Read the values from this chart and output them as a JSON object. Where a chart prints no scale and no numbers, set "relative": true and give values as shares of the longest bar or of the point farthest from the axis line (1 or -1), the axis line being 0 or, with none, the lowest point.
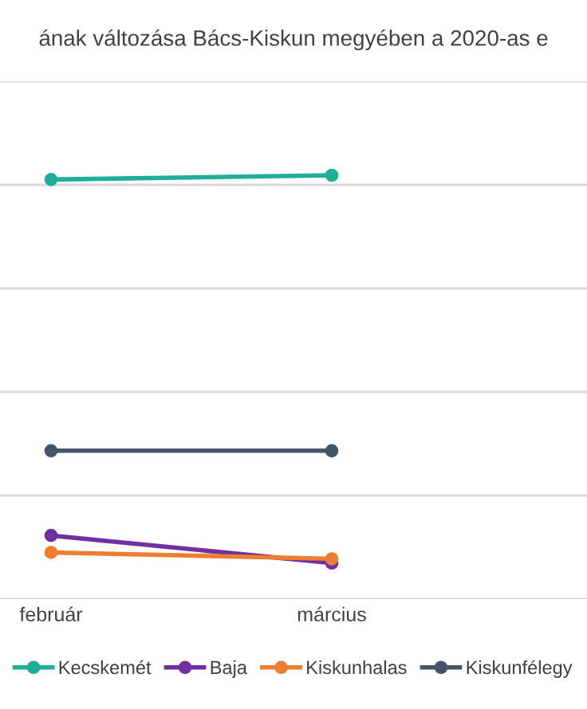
{
  "chart_data": {
    "type": "line",
    "title": "ának változása Bács-Kiskun megyében a 2020-as e",
    "categories": [
      "február",
      "március"
    ],
    "relative": true,
    "series": [
      {
        "name": "Kecskemét",
        "color": "#1fae98",
        "values": [
          0.99,
          1
        ]
      },
      {
        "name": "Baja",
        "color": "#7030a0",
        "values": [
          0.15,
          0.085
        ]
      },
      {
        "name": "Kiskunhalas",
        "color": "#ed7d31",
        "values": [
          0.11,
          0.095
        ]
      },
      {
        "name": "Kiskunfélegy",
        "color": "#44546a",
        "values": [
          0.35,
          0.35
        ]
      }
    ],
    "marker": "circle",
    "line_style": "solid",
    "grid": "y",
    "legend": "bottom"
  }
}
